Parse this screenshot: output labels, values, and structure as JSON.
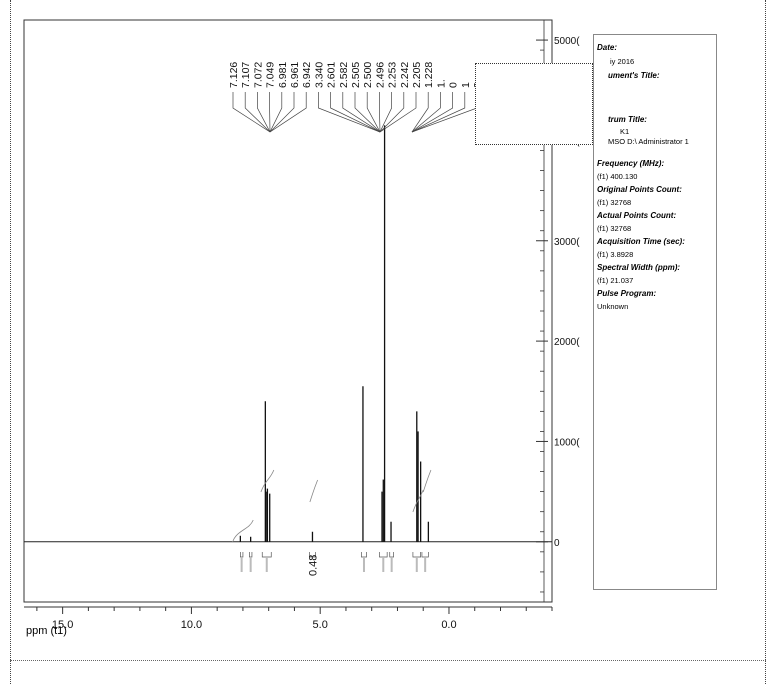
{
  "chart_data": {
    "type": "line",
    "xlabel": "ppm (t1)",
    "x_ticks": [
      "15.0",
      "10.0",
      "5.0",
      "0.0"
    ],
    "xlim": [
      16.5,
      -4.0
    ],
    "y_ticks": [
      "5000(",
      "4000(",
      "3000(",
      "2000(",
      "1000(",
      "0"
    ],
    "ylim": [
      -6000,
      52000
    ],
    "peak_labels": [
      "7.126",
      "7.107",
      "7.072",
      "7.049",
      "6.981",
      "6.961",
      "6.942",
      "3.340",
      "2.601",
      "2.582",
      "2.505",
      "2.500",
      "2.496",
      "2.253",
      "2.242",
      "2.205",
      "1.228",
      "1.",
      "0",
      "1",
      "2"
    ],
    "integration_label": "0.48",
    "peaks": [
      {
        "x": 8.1,
        "y": 600
      },
      {
        "x": 7.7,
        "y": 500
      },
      {
        "x": 7.13,
        "y": 14000
      },
      {
        "x": 7.1,
        "y": 5000
      },
      {
        "x": 7.05,
        "y": 5300
      },
      {
        "x": 6.96,
        "y": 4800
      },
      {
        "x": 5.3,
        "y": 1000
      },
      {
        "x": 3.34,
        "y": 15500
      },
      {
        "x": 2.6,
        "y": 5000
      },
      {
        "x": 2.55,
        "y": 6200
      },
      {
        "x": 2.5,
        "y": 41500
      },
      {
        "x": 2.25,
        "y": 2000
      },
      {
        "x": 1.25,
        "y": 13000
      },
      {
        "x": 1.2,
        "y": 11000
      },
      {
        "x": 1.1,
        "y": 8000
      },
      {
        "x": 0.8,
        "y": 2000
      }
    ]
  },
  "params": {
    "date_label": "Date:",
    "date_value": "iy 2016",
    "doc_title_label": "ument's Title:",
    "spectrum_title_label": "trum Title:",
    "spectrum_title_value1": "K1",
    "spectrum_title_value2": "MSO D:\\ Administrator 1",
    "frequency_label": "Frequency (MHz):",
    "frequency_value": "(f1) 400.130",
    "orig_points_label": "Original Points Count:",
    "orig_points_value": "(f1) 32768",
    "actual_points_label": "Actual Points Count:",
    "actual_points_value": "(f1) 32768",
    "acq_time_label": "Acquisition Time (sec):",
    "acq_time_value": "(f1) 3.8928",
    "spectral_width_label": "Spectral Width (ppm):",
    "spectral_width_value": "(f1) 21.037",
    "pulse_label": "Pulse Program:",
    "pulse_value": "Unknown"
  }
}
